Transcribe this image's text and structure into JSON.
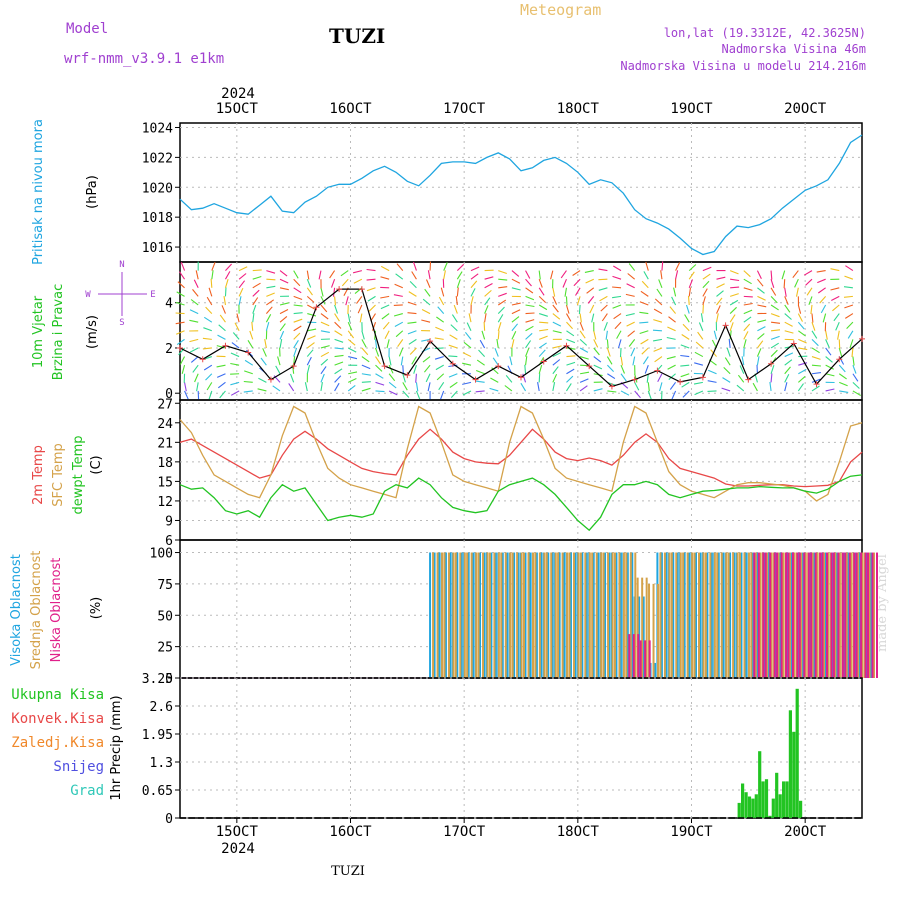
{
  "header": {
    "model_label": "Model",
    "model_name": "wrf-nmm_v3.9.1 e1km",
    "station": "TUZI",
    "product": "Meteogram",
    "lonlat": "lon,lat (19.3312E, 42.3625N)",
    "altitude": "Nadmorska Visina 46m",
    "model_altitude": "Nadmorska Visina u modelu 214.216m",
    "year": "2024",
    "footer_station": "TUZI",
    "watermark": "made by Angel"
  },
  "colors": {
    "pressure": "#1fa5e0",
    "t2m": "#e84848",
    "sfc": "#d4a24a",
    "dew": "#22c422",
    "high": "#1fa5e0",
    "mid": "#d4a24a",
    "low": "#e0208a",
    "precip": "#22c422",
    "purple": "#a040d0"
  },
  "time_axis": {
    "start_day": 14.5,
    "end_day": 20.5,
    "tick_labels": [
      "15OCT",
      "16OCT",
      "17OCT",
      "18OCT",
      "19OCT",
      "20OCT"
    ],
    "tick_days": [
      15,
      16,
      17,
      18,
      19,
      20
    ]
  },
  "panels": {
    "pressure": {
      "labels": [
        "Pritisak na nivou mora",
        "(hPa)"
      ],
      "yticks": [
        "1016",
        "1018",
        "1020",
        "1022",
        "1024"
      ],
      "ylim": [
        1015,
        1024.3
      ]
    },
    "wind": {
      "labels": [
        "10m Vjetar",
        "Brzina i Pravac",
        "(m/s)"
      ],
      "yticks": [
        "0",
        "2",
        "4"
      ],
      "ylim": [
        -0.3,
        5.8
      ],
      "compass": [
        "N",
        "S",
        "W",
        "E"
      ]
    },
    "temp": {
      "labels": [
        "2m Temp",
        "SFC Temp",
        "dewpt Temp",
        "(C)"
      ],
      "yticks": [
        "6",
        "9",
        "12",
        "15",
        "18",
        "21",
        "24",
        "27"
      ],
      "ylim": [
        6,
        27.5
      ]
    },
    "cloud": {
      "labels": [
        "Visoka Oblacnost",
        "Srednja Oblacnost",
        "Niska Oblacnost",
        "(%)"
      ],
      "yticks": [
        "0",
        "25",
        "50",
        "75",
        "100"
      ],
      "ylim": [
        0,
        110
      ]
    },
    "precip": {
      "axis_label": "1hr Precip (mm)",
      "legend": [
        "Ukupna Kisa",
        "Konvek.Kisa",
        "Zaledj.Kisa",
        "Snijeg",
        "Grad"
      ],
      "legend_colors": [
        "#22c422",
        "#e84848",
        "#f0882a",
        "#5050e0",
        "#30c8b8"
      ],
      "yticks": [
        "0",
        "0.65",
        "1.3",
        "1.95",
        "2.6",
        "3.25"
      ],
      "ylim": [
        0,
        3.25
      ]
    }
  },
  "chart_data": [
    {
      "type": "line",
      "title": "",
      "ylabel": "Pritisak na nivou mora (hPa)",
      "series": [
        {
          "name": "Pritisak na nivou mora",
          "x": [
            14.5,
            14.6,
            14.7,
            14.8,
            14.9,
            15.0,
            15.1,
            15.2,
            15.3,
            15.4,
            15.5,
            15.6,
            15.7,
            15.8,
            15.9,
            16.0,
            16.1,
            16.2,
            16.3,
            16.4,
            16.5,
            16.6,
            16.7,
            16.8,
            16.9,
            17.0,
            17.1,
            17.2,
            17.3,
            17.4,
            17.5,
            17.6,
            17.7,
            17.8,
            17.9,
            18.0,
            18.1,
            18.2,
            18.3,
            18.4,
            18.5,
            18.6,
            18.7,
            18.8,
            18.9,
            19.0,
            19.1,
            19.2,
            19.3,
            19.4,
            19.5,
            19.6,
            19.7,
            19.8,
            19.9,
            20.0,
            20.1,
            20.2,
            20.3,
            20.4,
            20.5
          ],
          "values": [
            1019.2,
            1018.5,
            1018.6,
            1018.9,
            1018.6,
            1018.3,
            1018.2,
            1018.8,
            1019.4,
            1018.4,
            1018.3,
            1019.0,
            1019.4,
            1020.0,
            1020.2,
            1020.2,
            1020.6,
            1021.1,
            1021.4,
            1021.0,
            1020.4,
            1020.1,
            1020.8,
            1021.6,
            1021.7,
            1021.7,
            1021.6,
            1022.0,
            1022.3,
            1021.9,
            1021.1,
            1021.3,
            1021.8,
            1022.0,
            1021.6,
            1021.0,
            1020.2,
            1020.5,
            1020.3,
            1019.6,
            1018.5,
            1017.9,
            1017.6,
            1017.2,
            1016.6,
            1015.9,
            1015.5,
            1015.7,
            1016.7,
            1017.4,
            1017.3,
            1017.5,
            1017.9,
            1018.6,
            1019.2,
            1019.8,
            1020.1,
            1020.5,
            1021.6,
            1023.0,
            1023.5
          ]
        }
      ]
    },
    {
      "type": "line",
      "title": "",
      "ylabel": "10m Vjetar Brzina i Pravac (m/s)",
      "series": [
        {
          "name": "10m Vjetar",
          "x": [
            14.5,
            14.7,
            14.9,
            15.1,
            15.3,
            15.5,
            15.7,
            15.9,
            16.1,
            16.3,
            16.5,
            16.7,
            16.9,
            17.1,
            17.3,
            17.5,
            17.7,
            17.9,
            18.1,
            18.3,
            18.5,
            18.7,
            18.9,
            19.1,
            19.3,
            19.5,
            19.7,
            19.9,
            20.1,
            20.3,
            20.5
          ],
          "values": [
            2.0,
            1.5,
            2.1,
            1.8,
            0.6,
            1.2,
            3.8,
            4.6,
            4.6,
            1.2,
            0.8,
            2.3,
            1.3,
            0.6,
            1.2,
            0.7,
            1.4,
            2.1,
            1.2,
            0.3,
            0.6,
            1.0,
            0.5,
            0.7,
            3.0,
            0.6,
            1.3,
            2.2,
            0.4,
            1.5,
            2.4
          ]
        }
      ]
    },
    {
      "type": "line",
      "title": "",
      "ylabel": "(C)",
      "series": [
        {
          "name": "2m Temp",
          "x": [
            14.5,
            14.6,
            14.7,
            14.8,
            14.9,
            15.0,
            15.1,
            15.2,
            15.3,
            15.4,
            15.5,
            15.6,
            15.7,
            15.8,
            15.9,
            16.0,
            16.1,
            16.2,
            16.3,
            16.4,
            16.5,
            16.6,
            16.7,
            16.8,
            16.9,
            17.0,
            17.1,
            17.2,
            17.3,
            17.4,
            17.5,
            17.6,
            17.7,
            17.8,
            17.9,
            18.0,
            18.1,
            18.2,
            18.3,
            18.4,
            18.5,
            18.6,
            18.7,
            18.8,
            18.9,
            19.0,
            19.1,
            19.2,
            19.3,
            19.4,
            19.5,
            19.6,
            19.7,
            19.8,
            19.9,
            20.0,
            20.1,
            20.2,
            20.3,
            20.4,
            20.5
          ],
          "values": [
            21.0,
            21.5,
            20.5,
            19.5,
            18.5,
            17.5,
            16.5,
            15.5,
            16.0,
            19.0,
            21.5,
            22.7,
            21.5,
            20.0,
            19.0,
            18.0,
            17.0,
            16.5,
            16.2,
            16.0,
            19.0,
            21.5,
            23.0,
            21.5,
            19.5,
            18.5,
            18.0,
            17.8,
            17.7,
            19.0,
            21.0,
            23.0,
            21.5,
            19.5,
            18.5,
            18.2,
            18.6,
            18.2,
            17.5,
            19.0,
            21.0,
            22.3,
            21.0,
            18.5,
            17.0,
            16.5,
            16.0,
            15.5,
            14.6,
            14.3,
            14.3,
            14.4,
            14.5,
            14.5,
            14.3,
            14.2,
            14.3,
            14.4,
            15.0,
            18.0,
            19.5
          ]
        },
        {
          "name": "SFC Temp",
          "x": [
            14.5,
            14.6,
            14.7,
            14.8,
            14.9,
            15.0,
            15.1,
            15.2,
            15.3,
            15.4,
            15.5,
            15.6,
            15.7,
            15.8,
            15.9,
            16.0,
            16.1,
            16.2,
            16.3,
            16.4,
            16.5,
            16.6,
            16.7,
            16.8,
            16.9,
            17.0,
            17.1,
            17.2,
            17.3,
            17.4,
            17.5,
            17.6,
            17.7,
            17.8,
            17.9,
            18.0,
            18.1,
            18.2,
            18.3,
            18.4,
            18.5,
            18.6,
            18.7,
            18.8,
            18.9,
            19.0,
            19.1,
            19.2,
            19.3,
            19.4,
            19.5,
            19.6,
            19.7,
            19.8,
            19.9,
            20.0,
            20.1,
            20.2,
            20.3,
            20.4,
            20.5
          ],
          "values": [
            24.5,
            22.5,
            19.0,
            16.0,
            15.0,
            14.0,
            13.0,
            12.5,
            16.0,
            22.0,
            26.5,
            25.5,
            21.0,
            17.0,
            15.5,
            14.5,
            14.0,
            13.5,
            13.0,
            12.5,
            20.0,
            26.5,
            25.5,
            21.0,
            16.0,
            15.0,
            14.5,
            14.0,
            13.5,
            21.0,
            26.5,
            25.5,
            21.5,
            17.0,
            15.5,
            15.0,
            14.5,
            14.0,
            13.5,
            21.0,
            26.5,
            25.5,
            21.0,
            16.5,
            14.5,
            13.5,
            13.0,
            12.5,
            13.5,
            14.5,
            14.8,
            14.8,
            14.6,
            14.4,
            14.0,
            13.5,
            12.0,
            13.0,
            18.0,
            23.5,
            24.0
          ]
        },
        {
          "name": "dewpt Temp",
          "x": [
            14.5,
            14.6,
            14.7,
            14.8,
            14.9,
            15.0,
            15.1,
            15.2,
            15.3,
            15.4,
            15.5,
            15.6,
            15.7,
            15.8,
            15.9,
            16.0,
            16.1,
            16.2,
            16.3,
            16.4,
            16.5,
            16.6,
            16.7,
            16.8,
            16.9,
            17.0,
            17.1,
            17.2,
            17.3,
            17.4,
            17.5,
            17.6,
            17.7,
            17.8,
            17.9,
            18.0,
            18.1,
            18.2,
            18.3,
            18.4,
            18.5,
            18.6,
            18.7,
            18.8,
            18.9,
            19.0,
            19.1,
            19.2,
            19.3,
            19.4,
            19.5,
            19.6,
            19.7,
            19.8,
            19.9,
            20.0,
            20.1,
            20.2,
            20.3,
            20.4,
            20.5
          ],
          "values": [
            14.5,
            13.8,
            14.0,
            12.5,
            10.5,
            10.0,
            10.5,
            9.5,
            12.5,
            14.5,
            13.5,
            14.0,
            11.5,
            9.0,
            9.5,
            9.8,
            9.5,
            10.0,
            13.5,
            14.5,
            14.0,
            15.5,
            14.5,
            12.5,
            11.0,
            10.5,
            10.2,
            10.5,
            13.5,
            14.5,
            15.0,
            15.5,
            14.5,
            13.0,
            11.0,
            9.0,
            7.5,
            9.5,
            13.0,
            14.5,
            14.5,
            15.0,
            14.5,
            13.0,
            12.5,
            13.0,
            13.5,
            13.6,
            13.8,
            14.0,
            14.0,
            14.2,
            14.1,
            14.0,
            14.0,
            13.5,
            13.2,
            13.8,
            15.0,
            15.8,
            16.0
          ]
        }
      ]
    },
    {
      "type": "bar",
      "title": "",
      "ylabel": "(%)",
      "x_range": [
        16.7,
        20.5
      ],
      "series": [
        {
          "name": "Visoka Oblacnost",
          "x": [
            16.7,
            16.8,
            16.9,
            17.0,
            17.1,
            17.2,
            17.3,
            17.4,
            17.5,
            17.6,
            17.7,
            17.8,
            17.9,
            18.0,
            18.1,
            18.2,
            18.3,
            18.4,
            18.5,
            18.6,
            18.7,
            18.8,
            18.9,
            19.0,
            19.1,
            19.2,
            19.3,
            19.4,
            19.5,
            19.6,
            19.7,
            19.8,
            19.9,
            20.0,
            20.1,
            20.2,
            20.3,
            20.4,
            20.5
          ],
          "values": [
            100,
            100,
            100,
            100,
            100,
            100,
            100,
            100,
            100,
            100,
            100,
            100,
            100,
            100,
            100,
            100,
            100,
            100,
            65,
            12,
            100,
            100,
            100,
            100,
            100,
            100,
            100,
            100,
            100,
            100,
            100,
            100,
            100,
            100,
            100,
            100,
            100,
            100,
            100
          ]
        },
        {
          "name": "Srednja Oblacnost",
          "x": [
            16.7,
            16.8,
            16.9,
            17.0,
            17.1,
            17.2,
            17.3,
            17.4,
            17.5,
            17.6,
            17.7,
            17.8,
            17.9,
            18.0,
            18.1,
            18.2,
            18.3,
            18.4,
            18.5,
            18.6,
            18.7,
            18.8,
            18.9,
            19.0,
            19.1,
            19.2,
            19.3,
            19.4,
            19.5,
            19.6,
            19.7,
            19.8,
            19.9,
            20.0,
            20.1,
            20.2,
            20.3,
            20.4,
            20.5
          ],
          "values": [
            100,
            100,
            100,
            100,
            100,
            100,
            100,
            100,
            100,
            100,
            100,
            100,
            100,
            100,
            100,
            100,
            100,
            100,
            80,
            75,
            100,
            100,
            100,
            100,
            100,
            100,
            100,
            100,
            100,
            100,
            100,
            100,
            100,
            100,
            100,
            100,
            100,
            100,
            100
          ]
        },
        {
          "name": "Niska Oblacnost",
          "x": [
            16.7,
            16.8,
            16.9,
            17.0,
            17.1,
            17.2,
            17.3,
            17.4,
            17.5,
            17.6,
            17.7,
            17.8,
            17.9,
            18.0,
            18.1,
            18.2,
            18.3,
            18.4,
            18.5,
            18.6,
            18.7,
            18.8,
            18.9,
            19.0,
            19.1,
            19.2,
            19.3,
            19.4,
            19.5,
            19.6,
            19.7,
            19.8,
            19.9,
            20.0,
            20.1,
            20.2,
            20.3,
            20.4,
            20.5
          ],
          "values": [
            0,
            0,
            0,
            0,
            0,
            0,
            0,
            0,
            0,
            0,
            0,
            0,
            0,
            0,
            0,
            0,
            0,
            35,
            30,
            0,
            0,
            0,
            0,
            0,
            0,
            0,
            0,
            0,
            100,
            100,
            100,
            100,
            100,
            100,
            100,
            100,
            100,
            100,
            100
          ]
        }
      ]
    },
    {
      "type": "bar",
      "title": "",
      "ylabel": "1hr Precip (mm)",
      "series": [
        {
          "name": "Ukupna Kisa",
          "x": [
            19.42,
            19.45,
            19.48,
            19.51,
            19.54,
            19.57,
            19.6,
            19.63,
            19.66,
            19.69,
            19.72,
            19.75,
            19.78,
            19.81,
            19.84,
            19.87,
            19.9,
            19.93,
            19.96
          ],
          "values": [
            0.35,
            0.8,
            0.6,
            0.5,
            0.45,
            0.55,
            1.55,
            0.85,
            0.9,
            0.05,
            0.45,
            1.05,
            0.55,
            0.85,
            0.85,
            2.5,
            2.0,
            3.0,
            0.4
          ]
        }
      ]
    }
  ]
}
